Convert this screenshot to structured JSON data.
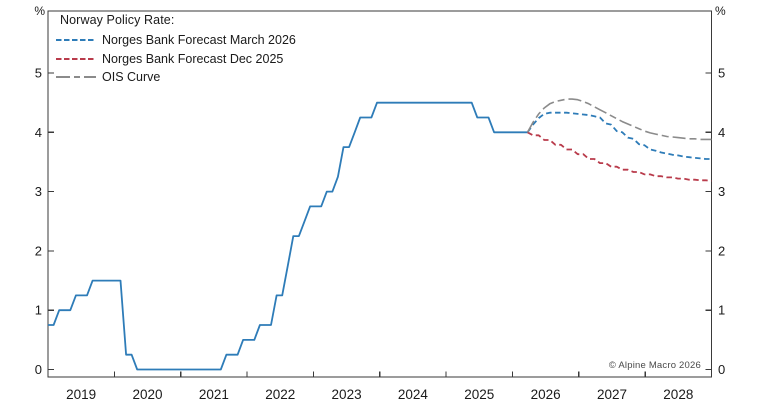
{
  "axes": {
    "unit_left": "%",
    "unit_right": "%",
    "y_labels": [
      "0",
      "1",
      "2",
      "3",
      "4",
      "5"
    ],
    "x_labels": [
      "2019",
      "2020",
      "2021",
      "2022",
      "2023",
      "2024",
      "2025",
      "2026",
      "2027",
      "2028"
    ]
  },
  "legend": {
    "title": "Norway Policy Rate:",
    "items": [
      {
        "label": "Norges Bank Forecast March 2026",
        "color": "#2e7cb8",
        "style": "dashed"
      },
      {
        "label": "Norges Bank Forecast Dec 2025",
        "color": "#b93b4b",
        "style": "dashed"
      },
      {
        "label": "OIS Curve",
        "color": "#8b8b8b",
        "style": "longdash"
      }
    ]
  },
  "footer": {
    "copyright": "© Alpine Macro 2026"
  },
  "chart_data": {
    "type": "line",
    "title": "Norway Policy Rate",
    "x_unit": "month",
    "x_range": [
      "2019-01",
      "2028-12"
    ],
    "months_total": 120,
    "ylim": [
      0,
      5
    ],
    "y_ticks": [
      0,
      1,
      2,
      3,
      4,
      5
    ],
    "x_tick_years": [
      2019,
      2020,
      2021,
      2022,
      2023,
      2024,
      2025,
      2026,
      2027,
      2028
    ],
    "grid": false,
    "legend_position": "top-left",
    "series": [
      {
        "name": "Policy rate (history)",
        "color": "#2e7cb8",
        "style": "solid",
        "start_month_index": 0,
        "start_month": "2019-01",
        "values": [
          0.75,
          0.75,
          1.0,
          1.0,
          1.0,
          1.25,
          1.25,
          1.25,
          1.5,
          1.5,
          1.5,
          1.5,
          1.5,
          1.5,
          0.25,
          0.25,
          0.0,
          0.0,
          0.0,
          0.0,
          0.0,
          0.0,
          0.0,
          0.0,
          0.0,
          0.0,
          0.0,
          0.0,
          0.0,
          0.0,
          0.0,
          0.0,
          0.25,
          0.25,
          0.25,
          0.5,
          0.5,
          0.5,
          0.75,
          0.75,
          0.75,
          1.25,
          1.25,
          1.75,
          2.25,
          2.25,
          2.5,
          2.75,
          2.75,
          2.75,
          3.0,
          3.0,
          3.25,
          3.75,
          3.75,
          4.0,
          4.25,
          4.25,
          4.25,
          4.5,
          4.5,
          4.5,
          4.5,
          4.5,
          4.5,
          4.5,
          4.5,
          4.5,
          4.5,
          4.5,
          4.5,
          4.5,
          4.5,
          4.5,
          4.5,
          4.5,
          4.5,
          4.25,
          4.25,
          4.25,
          4.0,
          4.0,
          4.0,
          4.0,
          4.0,
          4.0,
          4.0
        ]
      },
      {
        "name": "Norges Bank Forecast March 2026",
        "color": "#2e7cb8",
        "style": "dashed",
        "start_month_index": 86,
        "start_month": "2026-03",
        "values": [
          4.0,
          4.13,
          4.24,
          4.31,
          4.33,
          4.33,
          4.33,
          4.33,
          4.32,
          4.31,
          4.3,
          4.29,
          4.27,
          4.25,
          4.15,
          4.13,
          4.02,
          4.0,
          3.91,
          3.89,
          3.8,
          3.78,
          3.71,
          3.69,
          3.66,
          3.64,
          3.62,
          3.61,
          3.59,
          3.58,
          3.57,
          3.56,
          3.55,
          3.55
        ]
      },
      {
        "name": "Norges Bank Forecast Dec 2025",
        "color": "#b93b4b",
        "style": "dashed",
        "start_month_index": 86,
        "start_month": "2026-03",
        "values": [
          4.0,
          3.95,
          3.95,
          3.87,
          3.87,
          3.79,
          3.79,
          3.71,
          3.71,
          3.63,
          3.63,
          3.55,
          3.55,
          3.48,
          3.48,
          3.42,
          3.42,
          3.37,
          3.37,
          3.33,
          3.33,
          3.29,
          3.29,
          3.26,
          3.26,
          3.24,
          3.24,
          3.22,
          3.22,
          3.2,
          3.2,
          3.19,
          3.19,
          3.18
        ]
      },
      {
        "name": "OIS Curve",
        "color": "#8b8b8b",
        "style": "longdash",
        "start_month_index": 86,
        "start_month": "2026-03",
        "values": [
          4.0,
          4.17,
          4.31,
          4.41,
          4.48,
          4.52,
          4.54,
          4.56,
          4.56,
          4.55,
          4.52,
          4.48,
          4.43,
          4.38,
          4.33,
          4.28,
          4.23,
          4.18,
          4.14,
          4.1,
          4.06,
          4.02,
          3.99,
          3.97,
          3.95,
          3.93,
          3.92,
          3.91,
          3.9,
          3.89,
          3.89,
          3.88,
          3.88,
          3.88
        ]
      }
    ]
  }
}
